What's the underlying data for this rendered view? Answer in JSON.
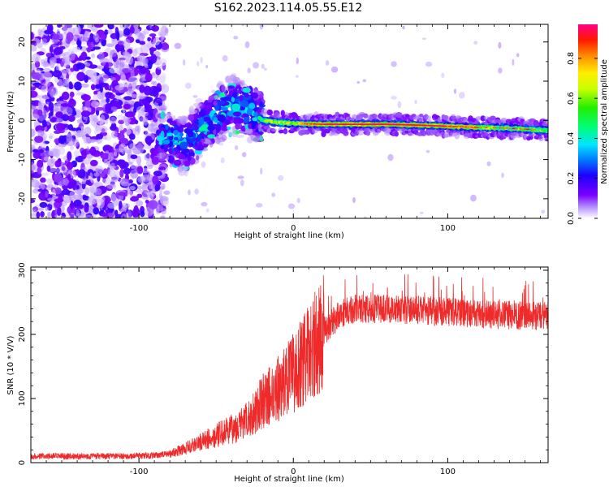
{
  "figure_title": "S162.2023.114.05.55.E12",
  "chart_data": [
    {
      "type": "heatmap",
      "title": "",
      "xlabel": "Height of straight line (km)",
      "ylabel": "Frequency (Hz)",
      "xlim": [
        -170,
        165
      ],
      "ylim": [
        -25,
        24.5
      ],
      "x_ticks": [
        -100,
        0,
        100
      ],
      "x_tick_labels": [
        "-100",
        "0",
        "100"
      ],
      "y_ticks": [
        -20,
        -10,
        0,
        10,
        20
      ],
      "y_tick_labels": [
        "-20",
        "-10",
        "0",
        "10",
        "20"
      ],
      "colorbar": {
        "label": "Normalized spectral amplitude",
        "range": [
          0,
          0.97
        ],
        "ticks": [
          0.0,
          0.2,
          0.4,
          0.6,
          0.8
        ],
        "tick_labels": [
          "0.0",
          "0.2",
          "0.4",
          "0.6",
          "0.8"
        ]
      },
      "regions": [
        {
          "x": [
            -170,
            -85
          ],
          "frequency_spread": [
            -25,
            24.5
          ],
          "amplitude": [
            0.0,
            0.2
          ],
          "description": "noise"
        },
        {
          "x": [
            -85,
            -20
          ],
          "frequency_center": [
            -5,
            3
          ],
          "amplitude": [
            0.1,
            0.4
          ]
        },
        {
          "x": [
            -20,
            165
          ],
          "frequency_center": [
            0,
            -3
          ],
          "amplitude": [
            0.2,
            0.97
          ]
        }
      ],
      "signal_track": {
        "x": [
          -85,
          -70,
          -60,
          -50,
          -40,
          -30,
          -20,
          -10,
          0,
          20,
          40,
          60,
          80,
          100,
          120,
          140,
          160
        ],
        "frequency": [
          -4,
          -6,
          -2,
          1,
          4,
          3,
          0,
          -0.5,
          -0.8,
          -1.0,
          -1.0,
          -1.0,
          -1.2,
          -1.5,
          -1.8,
          -2.0,
          -2.5
        ]
      }
    },
    {
      "type": "line",
      "title": "",
      "xlabel": "Height of straight line (km)",
      "ylabel": "SNR (10 * V/V)",
      "xlim": [
        -170,
        165
      ],
      "ylim": [
        0,
        305
      ],
      "x_ticks": [
        -100,
        0,
        100
      ],
      "x_tick_labels": [
        "-100",
        "0",
        "100"
      ],
      "y_ticks": [
        0,
        100,
        200,
        300
      ],
      "y_tick_labels": [
        "0",
        "100",
        "200",
        "300"
      ],
      "series": [
        {
          "color": "#ee2a2a",
          "x": [
            -170,
            -150,
            -130,
            -110,
            -90,
            -80,
            -70,
            -60,
            -50,
            -40,
            -30,
            -20,
            -10,
            0,
            10,
            20,
            30,
            40,
            60,
            80,
            100,
            120,
            140,
            165
          ],
          "values": [
            10,
            10,
            10,
            10,
            11,
            14,
            22,
            32,
            42,
            52,
            65,
            95,
            115,
            140,
            170,
            205,
            232,
            240,
            240,
            238,
            235,
            232,
            230,
            228
          ]
        }
      ]
    }
  ]
}
